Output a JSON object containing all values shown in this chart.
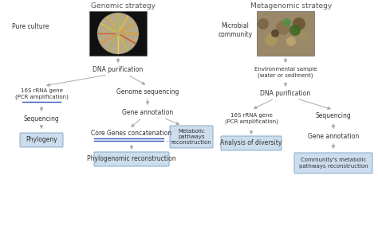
{
  "bg_color": "#ffffff",
  "arrow_color": "#aaaaaa",
  "line_color": "#3355bb",
  "box_fill": "#ccdded",
  "box_edge": "#88aac8",
  "text_color": "#333333",
  "title_color": "#555555",
  "left_title": "Genomic strategy",
  "right_title": "Metagenomic strategy",
  "left_col": {
    "pure_culture_label": "Pure culture",
    "dna_purif": "DNA purification",
    "gene_16s": "16S rRNA gene\n(PCR amplification)",
    "genome_seq": "Genome sequencing",
    "gene_annot": "Gene annotation",
    "core_genes": "Core Genes concatenation",
    "sequencing": "Sequencing",
    "phylogeny_box": "Phylogeny",
    "phylogeno_box": "Phylogenomic reconstruction",
    "metabolic_box": "Metabolic\npathways\nreconstruction"
  },
  "right_col": {
    "microbial_label": "Microbial\ncommunity",
    "env_sample": "Environmental sample\n(water or sediment)",
    "dna_purif": "DNA purification",
    "gene_16s": "16S rRNA gene\n(PCR amplification)",
    "sequencing": "Sequencing",
    "gene_annot": "Gene annotation",
    "diversity_box": "Analysis of diversity",
    "community_box": "Community's metabolic\npathways reconstruction"
  }
}
